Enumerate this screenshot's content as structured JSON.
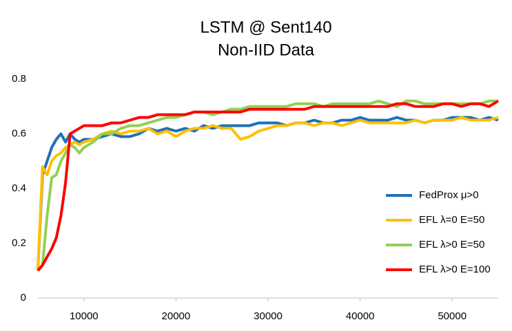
{
  "chart_data": {
    "type": "line",
    "title": [
      "LSTM @ Sent140",
      "Non-IID Data"
    ],
    "x": [
      5000,
      5500,
      6000,
      6500,
      7000,
      7500,
      8000,
      8500,
      9000,
      9500,
      10000,
      11000,
      12000,
      13000,
      14000,
      15000,
      16000,
      17000,
      18000,
      19000,
      20000,
      21000,
      22000,
      23000,
      24000,
      25000,
      26000,
      27000,
      28000,
      29000,
      30000,
      31000,
      32000,
      33000,
      34000,
      35000,
      36000,
      37000,
      38000,
      39000,
      40000,
      41000,
      42000,
      43000,
      44000,
      45000,
      46000,
      47000,
      48000,
      49000,
      50000,
      51000,
      52000,
      53000,
      54000,
      55000
    ],
    "series": [
      {
        "name": "FedProx μ>0",
        "color": "#1f6fba",
        "values": [
          0.1,
          0.45,
          0.5,
          0.55,
          0.58,
          0.6,
          0.57,
          0.6,
          0.58,
          0.57,
          0.58,
          0.58,
          0.59,
          0.6,
          0.59,
          0.59,
          0.6,
          0.62,
          0.61,
          0.62,
          0.61,
          0.62,
          0.61,
          0.63,
          0.62,
          0.63,
          0.63,
          0.63,
          0.63,
          0.64,
          0.64,
          0.64,
          0.63,
          0.64,
          0.64,
          0.65,
          0.64,
          0.64,
          0.65,
          0.65,
          0.66,
          0.65,
          0.65,
          0.65,
          0.66,
          0.65,
          0.65,
          0.64,
          0.65,
          0.65,
          0.66,
          0.66,
          0.66,
          0.65,
          0.66,
          0.65
        ]
      },
      {
        "name": "EFL λ=0 E=50",
        "color": "#ffc000",
        "values": [
          0.1,
          0.48,
          0.45,
          0.5,
          0.52,
          0.53,
          0.55,
          0.56,
          0.57,
          0.56,
          0.57,
          0.58,
          0.6,
          0.61,
          0.6,
          0.61,
          0.61,
          0.62,
          0.6,
          0.61,
          0.59,
          0.61,
          0.62,
          0.62,
          0.63,
          0.62,
          0.62,
          0.58,
          0.59,
          0.61,
          0.62,
          0.63,
          0.63,
          0.64,
          0.64,
          0.63,
          0.64,
          0.64,
          0.63,
          0.64,
          0.65,
          0.64,
          0.64,
          0.64,
          0.64,
          0.64,
          0.65,
          0.64,
          0.65,
          0.65,
          0.65,
          0.66,
          0.65,
          0.65,
          0.65,
          0.66
        ]
      },
      {
        "name": "EFL λ>0 E=50",
        "color": "#92d050",
        "values": [
          0.1,
          0.12,
          0.3,
          0.44,
          0.45,
          0.5,
          0.53,
          0.56,
          0.55,
          0.53,
          0.55,
          0.57,
          0.6,
          0.6,
          0.62,
          0.63,
          0.63,
          0.64,
          0.65,
          0.66,
          0.66,
          0.67,
          0.68,
          0.68,
          0.67,
          0.68,
          0.69,
          0.69,
          0.7,
          0.7,
          0.7,
          0.7,
          0.7,
          0.71,
          0.71,
          0.71,
          0.7,
          0.71,
          0.71,
          0.71,
          0.71,
          0.71,
          0.72,
          0.71,
          0.7,
          0.72,
          0.72,
          0.71,
          0.71,
          0.71,
          0.71,
          0.71,
          0.71,
          0.71,
          0.72,
          0.72
        ]
      },
      {
        "name": "EFL λ>0 E=100",
        "color": "#ff0000",
        "values": [
          0.1,
          0.12,
          0.15,
          0.18,
          0.22,
          0.3,
          0.42,
          0.6,
          0.61,
          0.62,
          0.63,
          0.63,
          0.63,
          0.64,
          0.64,
          0.65,
          0.66,
          0.66,
          0.67,
          0.67,
          0.67,
          0.67,
          0.68,
          0.68,
          0.68,
          0.68,
          0.68,
          0.68,
          0.69,
          0.69,
          0.69,
          0.69,
          0.69,
          0.69,
          0.69,
          0.7,
          0.7,
          0.7,
          0.7,
          0.7,
          0.7,
          0.7,
          0.7,
          0.7,
          0.71,
          0.71,
          0.7,
          0.7,
          0.7,
          0.71,
          0.71,
          0.7,
          0.71,
          0.71,
          0.7,
          0.72
        ]
      }
    ],
    "xlim": [
      5000,
      55000
    ],
    "xticks": [
      10000,
      20000,
      30000,
      40000,
      50000
    ],
    "ylim": [
      0,
      0.8
    ],
    "yticks": [
      0,
      0.2,
      0.4,
      0.6,
      0.8
    ],
    "grid": false,
    "legend": "lower right"
  }
}
